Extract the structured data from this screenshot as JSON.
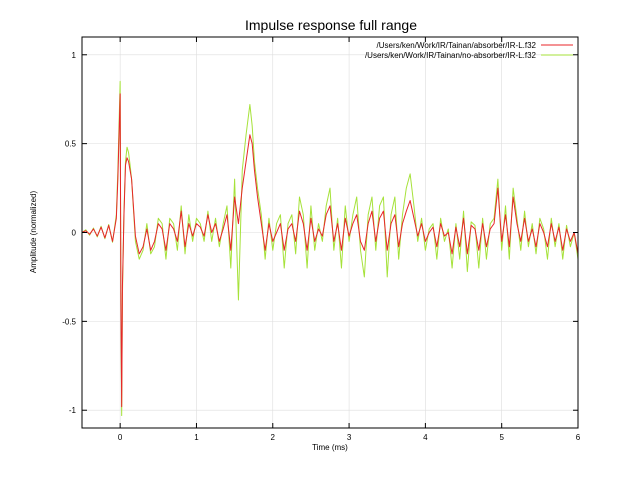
{
  "chart_data": {
    "type": "line",
    "title": "Impulse response full range",
    "xlabel": "Time (ms)",
    "ylabel": "Amplitude (normalized)",
    "xlim": [
      -0.5,
      6
    ],
    "ylim": [
      -1.1,
      1.1
    ],
    "xticks": [
      0,
      1,
      2,
      3,
      4,
      5,
      6
    ],
    "xtick_labels": [
      "0",
      "1",
      "2",
      "3",
      "4",
      "5",
      "6"
    ],
    "yticks": [
      1,
      0.5,
      0,
      -0.5,
      -1
    ],
    "ytick_labels": [
      "1",
      "0.5",
      "0",
      "-0.5",
      "-1"
    ],
    "grid": true,
    "legend_position": "top-right",
    "series": [
      {
        "name": "/Users/ken/Work/IR/Tainan/absorber/IR-L.f32",
        "color": "#e8252a",
        "x": [
          -0.5,
          -0.45,
          -0.4,
          -0.35,
          -0.3,
          -0.25,
          -0.2,
          -0.15,
          -0.1,
          -0.05,
          -0.03,
          0.0,
          0.01,
          0.02,
          0.03,
          0.05,
          0.07,
          0.09,
          0.11,
          0.13,
          0.15,
          0.2,
          0.25,
          0.3,
          0.35,
          0.4,
          0.45,
          0.5,
          0.55,
          0.6,
          0.65,
          0.7,
          0.75,
          0.8,
          0.85,
          0.9,
          0.95,
          1.0,
          1.05,
          1.1,
          1.15,
          1.2,
          1.25,
          1.3,
          1.35,
          1.4,
          1.45,
          1.5,
          1.55,
          1.6,
          1.65,
          1.7,
          1.73,
          1.76,
          1.8,
          1.85,
          1.9,
          1.95,
          2.0,
          2.05,
          2.1,
          2.15,
          2.2,
          2.25,
          2.3,
          2.35,
          2.4,
          2.45,
          2.5,
          2.55,
          2.6,
          2.65,
          2.7,
          2.75,
          2.8,
          2.85,
          2.9,
          2.95,
          3.0,
          3.05,
          3.1,
          3.15,
          3.2,
          3.25,
          3.3,
          3.35,
          3.4,
          3.45,
          3.5,
          3.55,
          3.6,
          3.65,
          3.7,
          3.75,
          3.8,
          3.85,
          3.9,
          3.95,
          4.0,
          4.05,
          4.1,
          4.15,
          4.2,
          4.25,
          4.3,
          4.35,
          4.4,
          4.45,
          4.5,
          4.55,
          4.6,
          4.65,
          4.7,
          4.75,
          4.8,
          4.85,
          4.9,
          4.95,
          5.0,
          5.05,
          5.1,
          5.15,
          5.2,
          5.25,
          5.3,
          5.35,
          5.4,
          5.45,
          5.5,
          5.55,
          5.6,
          5.65,
          5.7,
          5.75,
          5.8,
          5.85,
          5.9,
          5.95,
          6.0
        ],
        "values": [
          0.0,
          0.01,
          -0.01,
          0.02,
          -0.02,
          0.03,
          -0.03,
          0.04,
          -0.05,
          0.08,
          0.3,
          0.78,
          -0.4,
          -0.98,
          -0.3,
          0.1,
          0.38,
          0.42,
          0.4,
          0.35,
          0.3,
          -0.02,
          -0.12,
          -0.08,
          0.02,
          -0.1,
          -0.05,
          0.05,
          0.02,
          -0.1,
          0.05,
          0.02,
          -0.05,
          0.12,
          -0.08,
          0.05,
          -0.02,
          0.05,
          0.03,
          -0.02,
          0.1,
          0.0,
          0.05,
          -0.05,
          0.02,
          0.1,
          -0.1,
          0.2,
          0.05,
          0.25,
          0.4,
          0.55,
          0.5,
          0.35,
          0.2,
          0.05,
          -0.1,
          0.05,
          -0.05,
          0.0,
          0.05,
          -0.1,
          0.02,
          0.05,
          -0.05,
          0.12,
          0.05,
          -0.1,
          0.08,
          -0.05,
          0.02,
          -0.02,
          0.1,
          0.15,
          -0.05,
          0.05,
          -0.1,
          0.08,
          -0.02,
          0.05,
          0.1,
          -0.05,
          -0.1,
          0.05,
          0.12,
          -0.05,
          0.08,
          0.12,
          -0.1,
          0.05,
          0.1,
          -0.08,
          0.05,
          0.12,
          0.18,
          0.08,
          -0.02,
          0.05,
          -0.05,
          0.0,
          0.03,
          -0.08,
          0.05,
          -0.02,
          0.0,
          -0.12,
          0.03,
          -0.08,
          0.08,
          -0.12,
          0.04,
          0.02,
          -0.1,
          0.05,
          -0.08,
          0.02,
          0.05,
          0.25,
          -0.05,
          0.1,
          -0.08,
          0.2,
          0.05,
          -0.05,
          0.08,
          -0.05,
          0.02,
          -0.08,
          0.05,
          0.0,
          -0.08,
          0.05,
          -0.05,
          0.03,
          -0.1,
          0.02,
          -0.05,
          0.0,
          -0.12
        ]
      },
      {
        "name": "/Users/ken/Work/IR/Tainan/no-absorber/IR-L.f32",
        "color": "#a6e23a",
        "x": [
          -0.5,
          -0.45,
          -0.4,
          -0.35,
          -0.3,
          -0.25,
          -0.2,
          -0.15,
          -0.1,
          -0.05,
          -0.03,
          0.0,
          0.01,
          0.02,
          0.03,
          0.05,
          0.07,
          0.09,
          0.11,
          0.13,
          0.15,
          0.2,
          0.25,
          0.3,
          0.35,
          0.4,
          0.45,
          0.5,
          0.55,
          0.6,
          0.65,
          0.7,
          0.75,
          0.8,
          0.85,
          0.9,
          0.95,
          1.0,
          1.05,
          1.1,
          1.15,
          1.2,
          1.25,
          1.3,
          1.35,
          1.4,
          1.45,
          1.5,
          1.55,
          1.6,
          1.65,
          1.7,
          1.73,
          1.76,
          1.8,
          1.85,
          1.9,
          1.95,
          2.0,
          2.05,
          2.1,
          2.15,
          2.2,
          2.25,
          2.3,
          2.35,
          2.4,
          2.45,
          2.5,
          2.55,
          2.6,
          2.65,
          2.7,
          2.75,
          2.8,
          2.85,
          2.9,
          2.95,
          3.0,
          3.05,
          3.1,
          3.15,
          3.2,
          3.25,
          3.3,
          3.35,
          3.4,
          3.45,
          3.5,
          3.55,
          3.6,
          3.65,
          3.7,
          3.75,
          3.8,
          3.85,
          3.9,
          3.95,
          4.0,
          4.05,
          4.1,
          4.15,
          4.2,
          4.25,
          4.3,
          4.35,
          4.4,
          4.45,
          4.5,
          4.55,
          4.6,
          4.65,
          4.7,
          4.75,
          4.8,
          4.85,
          4.9,
          4.95,
          5.0,
          5.05,
          5.1,
          5.15,
          5.2,
          5.25,
          5.3,
          5.35,
          5.4,
          5.45,
          5.5,
          5.55,
          5.6,
          5.65,
          5.7,
          5.75,
          5.8,
          5.85,
          5.9,
          5.95,
          6.0
        ],
        "values": [
          0.0,
          0.015,
          -0.015,
          0.025,
          -0.025,
          0.035,
          -0.035,
          0.045,
          -0.055,
          0.1,
          0.35,
          0.85,
          -0.45,
          -1.03,
          -0.35,
          0.12,
          0.4,
          0.48,
          0.45,
          0.38,
          0.3,
          -0.05,
          -0.15,
          -0.1,
          0.05,
          -0.12,
          -0.08,
          0.08,
          0.05,
          -0.15,
          0.08,
          0.05,
          -0.1,
          0.15,
          -0.12,
          0.1,
          -0.05,
          0.08,
          0.05,
          -0.05,
          0.12,
          -0.05,
          0.08,
          -0.08,
          0.05,
          0.15,
          -0.2,
          0.3,
          -0.38,
          0.35,
          0.55,
          0.72,
          0.6,
          0.4,
          0.25,
          0.1,
          -0.15,
          0.08,
          -0.1,
          0.05,
          0.1,
          -0.2,
          0.05,
          0.1,
          -0.12,
          0.2,
          0.1,
          -0.2,
          0.15,
          -0.1,
          0.05,
          -0.05,
          0.15,
          0.25,
          -0.1,
          0.08,
          -0.2,
          0.15,
          -0.05,
          0.1,
          0.2,
          -0.1,
          -0.25,
          0.1,
          0.2,
          -0.1,
          0.15,
          0.2,
          -0.25,
          0.1,
          0.2,
          -0.15,
          0.1,
          0.25,
          0.33,
          0.15,
          -0.05,
          0.08,
          -0.1,
          0.02,
          0.05,
          -0.15,
          0.08,
          -0.05,
          0.02,
          -0.2,
          0.05,
          -0.15,
          0.12,
          -0.22,
          0.06,
          0.04,
          -0.2,
          0.08,
          -0.15,
          0.05,
          0.08,
          0.3,
          -0.1,
          0.15,
          -0.15,
          0.25,
          0.08,
          -0.1,
          0.12,
          -0.08,
          0.05,
          -0.12,
          0.08,
          0.02,
          -0.15,
          0.08,
          -0.08,
          0.05,
          -0.15,
          0.04,
          -0.08,
          0.0,
          -0.15
        ]
      }
    ]
  }
}
